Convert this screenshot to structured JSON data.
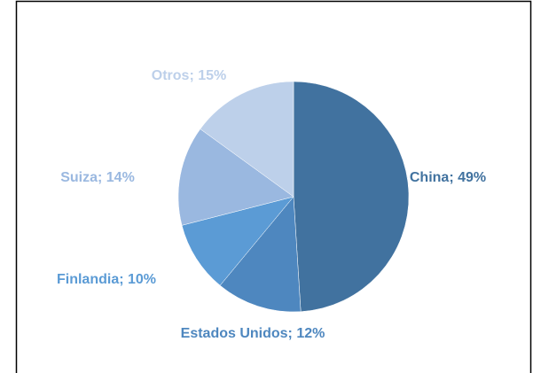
{
  "chart_data": {
    "type": "pie",
    "categories": [
      "China",
      "Estados Unidos",
      "Finlandia",
      "Suiza",
      "Otros"
    ],
    "values": [
      49,
      12,
      10,
      14,
      15
    ],
    "value_labels": [
      "China; 49%",
      "Estados Unidos; 12%",
      "Finlandia; 10%",
      "Suiza; 14%",
      "Otros; 15%"
    ],
    "colors": [
      "#41729f",
      "#4e87bf",
      "#5b9bd5",
      "#9ab8e0",
      "#bdd0ea"
    ],
    "start_angle": 0,
    "direction": "clockwise"
  }
}
